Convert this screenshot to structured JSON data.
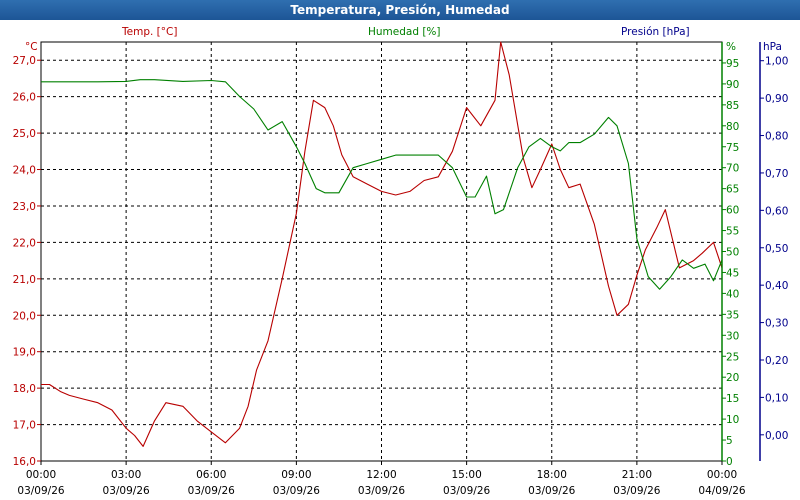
{
  "window": {
    "title": "Temperatura, Presión, Humedad"
  },
  "colors": {
    "temp": "#b80000",
    "hum": "#008000",
    "press": "#00008b",
    "grid": "#000000",
    "text": "#000000"
  },
  "chart_data": {
    "type": "line",
    "title": "Temperatura, Presión, Humedad",
    "grid": true,
    "series_labels": {
      "temp": "Temp. [°C]",
      "hum": "Humedad [%]",
      "press": "Presión [hPa]"
    },
    "axes": {
      "temp": {
        "unit": "°C",
        "range": [
          16.0,
          27.5
        ],
        "ticks": [
          "16,0",
          "17,0",
          "18,0",
          "19,0",
          "20,0",
          "21,0",
          "22,0",
          "23,0",
          "24,0",
          "25,0",
          "26,0",
          "27,0"
        ]
      },
      "hum": {
        "unit": "%",
        "range": [
          0,
          100
        ],
        "ticks": [
          "0",
          "5",
          "10",
          "15",
          "20",
          "25",
          "30",
          "35",
          "40",
          "45",
          "50",
          "55",
          "60",
          "65",
          "70",
          "75",
          "80",
          "85",
          "90",
          "95"
        ]
      },
      "press": {
        "unit": "hPa",
        "range": [
          -0.07,
          1.05
        ],
        "ticks": [
          "0,00",
          "0,10",
          "0,20",
          "0,30",
          "0,40",
          "0,50",
          "0,60",
          "0,70",
          "0,80",
          "0,90",
          "1,00"
        ]
      }
    },
    "x_ticks": [
      {
        "time": "00:00",
        "date": "03/09/26"
      },
      {
        "time": "03:00",
        "date": "03/09/26"
      },
      {
        "time": "06:00",
        "date": "03/09/26"
      },
      {
        "time": "09:00",
        "date": "03/09/26"
      },
      {
        "time": "12:00",
        "date": "03/09/26"
      },
      {
        "time": "15:00",
        "date": "03/09/26"
      },
      {
        "time": "18:00",
        "date": "03/09/26"
      },
      {
        "time": "21:00",
        "date": "03/09/26"
      },
      {
        "time": "00:00",
        "date": "04/09/26"
      }
    ],
    "x_range_hours": [
      0,
      24
    ],
    "series": [
      {
        "name": "Temp. [°C]",
        "key": "temp",
        "x": [
          0,
          0.3,
          0.7,
          1,
          1.5,
          2,
          2.5,
          3,
          3.3,
          3.6,
          4,
          4.4,
          5,
          5.5,
          6,
          6.5,
          7,
          7.3,
          7.6,
          8,
          8.5,
          9,
          9.3,
          9.6,
          10,
          10.3,
          10.6,
          11,
          11.5,
          12,
          12.5,
          13,
          13.5,
          14,
          14.5,
          15,
          15.5,
          16,
          16.2,
          16.5,
          17,
          17.3,
          17.6,
          18,
          18.3,
          18.6,
          19,
          19.5,
          20,
          20.3,
          20.7,
          21,
          21.3,
          21.7,
          22,
          22.5,
          23,
          23.3,
          23.7,
          24
        ],
        "y": [
          18.1,
          18.1,
          17.9,
          17.8,
          17.7,
          17.6,
          17.4,
          16.9,
          16.7,
          16.4,
          17.1,
          17.6,
          17.5,
          17.1,
          16.8,
          16.5,
          16.9,
          17.5,
          18.5,
          19.3,
          21.0,
          22.8,
          24.5,
          25.9,
          25.7,
          25.2,
          24.4,
          23.8,
          23.6,
          23.4,
          23.3,
          23.4,
          23.7,
          23.8,
          24.5,
          25.7,
          25.2,
          25.9,
          27.5,
          26.6,
          24.3,
          23.5,
          24.0,
          24.7,
          24.0,
          23.5,
          23.6,
          22.5,
          20.8,
          20.0,
          20.3,
          21.1,
          21.8,
          22.4,
          22.9,
          21.3,
          21.5,
          21.7,
          22.0,
          21.3
        ]
      },
      {
        "name": "Humedad [%]",
        "key": "hum",
        "x": [
          0,
          0.5,
          1,
          2,
          3,
          3.5,
          4,
          5,
          6,
          6.5,
          7,
          7.5,
          8,
          8.5,
          9,
          9.3,
          9.7,
          10,
          10.5,
          11,
          11.5,
          12,
          12.5,
          13,
          13.5,
          14,
          14.5,
          15,
          15.3,
          15.7,
          16,
          16.3,
          16.8,
          17.2,
          17.6,
          18,
          18.3,
          18.6,
          19,
          19.5,
          20,
          20.3,
          20.7,
          21,
          21.4,
          21.8,
          22.2,
          22.6,
          23,
          23.4,
          23.7,
          24
        ],
        "y": [
          90.5,
          90.5,
          90.5,
          90.5,
          90.6,
          91,
          91,
          90.6,
          90.8,
          90.5,
          87,
          84,
          79,
          81,
          75,
          71,
          65,
          64,
          64,
          70,
          71,
          72,
          73,
          73,
          73,
          73,
          70,
          63,
          63,
          68,
          59,
          60,
          70,
          75,
          77,
          75,
          74,
          76,
          76,
          78,
          82,
          80,
          71,
          53,
          44,
          41,
          44,
          48,
          46,
          47,
          43,
          48
        ]
      },
      {
        "name": "Presión [hPa]",
        "key": "press",
        "x": [],
        "y": []
      }
    ]
  }
}
